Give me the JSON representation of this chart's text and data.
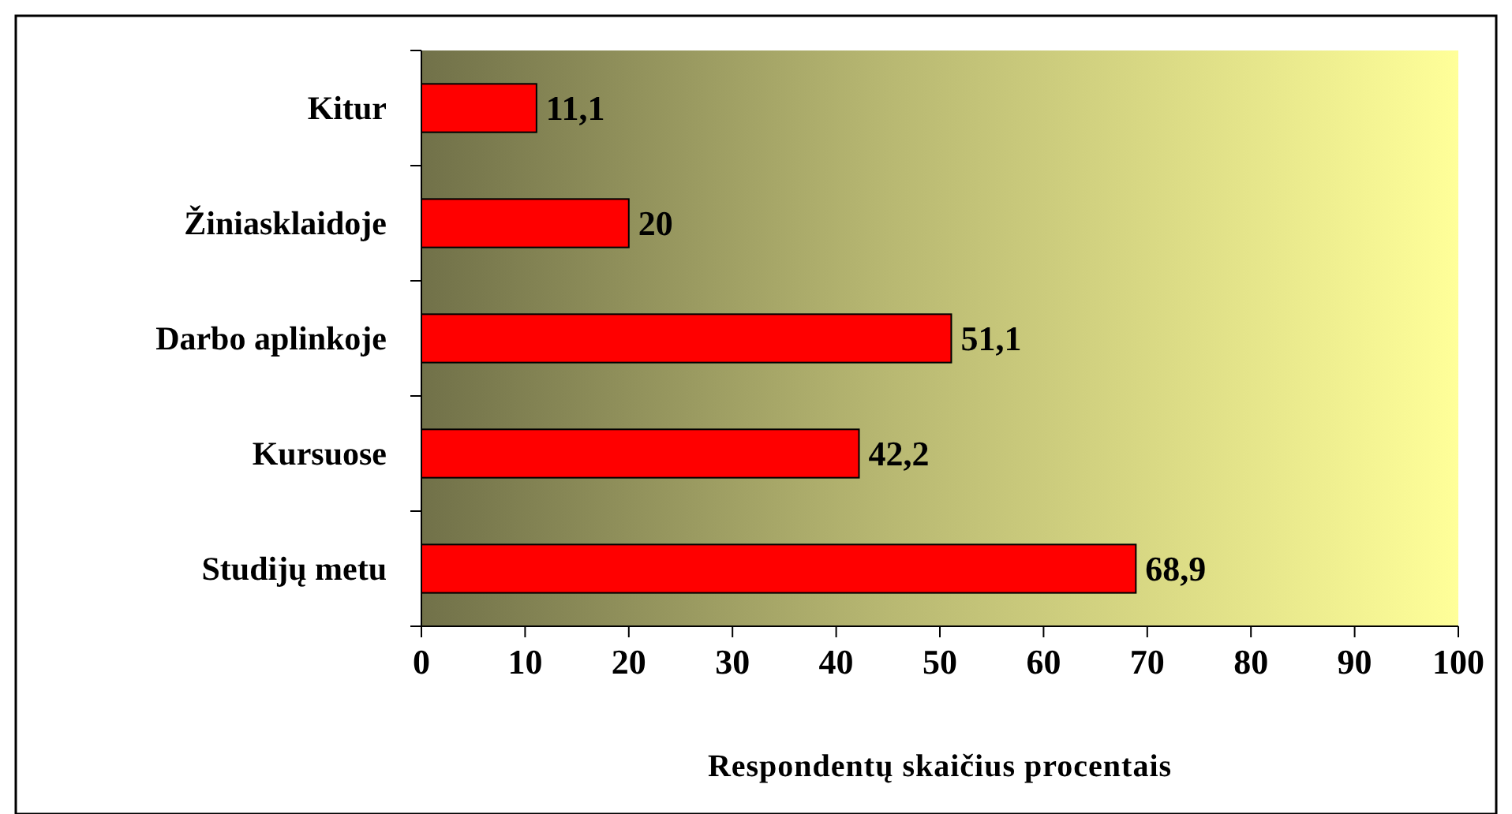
{
  "chart_data": {
    "type": "bar",
    "orientation": "horizontal",
    "xlabel": "Respondentų skaičius procentais",
    "categories": [
      "Kitur",
      "Žiniasklaidoje",
      "Darbo aplinkoje",
      "Kursuose",
      "Studijų metu"
    ],
    "values": [
      11.1,
      20,
      51.1,
      42.2,
      68.9
    ],
    "color": "#ff0000",
    "value_labels": [
      "11,1",
      "20",
      "51,1",
      "42,2",
      "68,9"
    ],
    "xlim": [
      0,
      100
    ],
    "xticks": [
      0,
      10,
      20,
      30,
      40,
      50,
      60,
      70,
      80,
      90,
      100
    ]
  }
}
